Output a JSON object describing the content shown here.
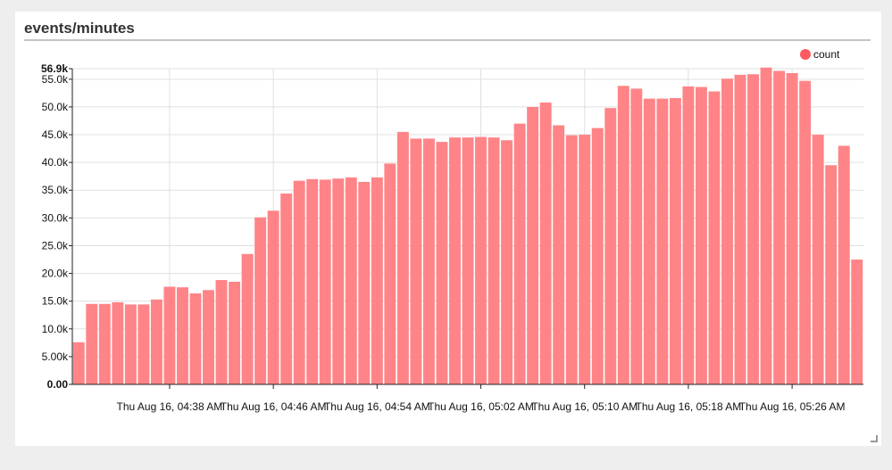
{
  "panel": {
    "title": "events/minutes"
  },
  "colors": {
    "bar": "#ff8487",
    "legend_dot": "#ff5a5f",
    "grid": "#e0e0e0",
    "axis": "#222222"
  },
  "chart_data": {
    "type": "bar",
    "title": "events/minutes",
    "xlabel": "",
    "ylabel": "",
    "legend": {
      "entries": [
        "count"
      ],
      "placement": "top-right"
    },
    "grid": true,
    "ylim": [
      0,
      56900
    ],
    "y_ticks": [
      {
        "value": 0,
        "label": "0.00"
      },
      {
        "value": 5000,
        "label": "5.00k"
      },
      {
        "value": 10000,
        "label": "10.0k"
      },
      {
        "value": 15000,
        "label": "15.0k"
      },
      {
        "value": 20000,
        "label": "20.0k"
      },
      {
        "value": 25000,
        "label": "25.0k"
      },
      {
        "value": 30000,
        "label": "30.0k"
      },
      {
        "value": 35000,
        "label": "35.0k"
      },
      {
        "value": 40000,
        "label": "40.0k"
      },
      {
        "value": 45000,
        "label": "45.0k"
      },
      {
        "value": 50000,
        "label": "50.0k"
      },
      {
        "value": 55000,
        "label": "55.0k"
      },
      {
        "value": 56900,
        "label": "56.9k"
      }
    ],
    "x_ticks": [
      {
        "index": 7,
        "label": "Thu Aug 16, 04:38 AM"
      },
      {
        "index": 15,
        "label": "Thu Aug 16, 04:46 AM"
      },
      {
        "index": 23,
        "label": "Thu Aug 16, 04:54 AM"
      },
      {
        "index": 31,
        "label": "Thu Aug 16, 05:02 AM"
      },
      {
        "index": 39,
        "label": "Thu Aug 16, 05:10 AM"
      },
      {
        "index": 47,
        "label": "Thu Aug 16, 05:18 AM"
      },
      {
        "index": 55,
        "label": "Thu Aug 16, 05:26 AM"
      }
    ],
    "series": [
      {
        "name": "count",
        "values": [
          7600,
          14500,
          14500,
          14800,
          14400,
          14400,
          15300,
          17600,
          17500,
          16400,
          17000,
          18800,
          18500,
          23500,
          30100,
          31300,
          34400,
          36700,
          37000,
          36900,
          37100,
          37300,
          36500,
          37300,
          39800,
          45500,
          44300,
          44300,
          43700,
          44500,
          44500,
          44600,
          44500,
          44000,
          47000,
          50000,
          50800,
          46700,
          44900,
          45000,
          46200,
          49800,
          53800,
          53300,
          51500,
          51500,
          51600,
          53700,
          53600,
          52800,
          55100,
          55800,
          55900,
          57100,
          56500,
          56100,
          54700,
          45000,
          39500,
          43000,
          22500
        ]
      }
    ]
  }
}
